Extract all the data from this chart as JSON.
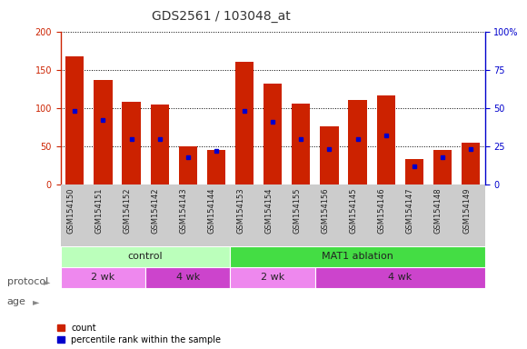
{
  "title": "GDS2561 / 103048_at",
  "samples": [
    "GSM154150",
    "GSM154151",
    "GSM154152",
    "GSM154142",
    "GSM154143",
    "GSM154144",
    "GSM154153",
    "GSM154154",
    "GSM154155",
    "GSM154156",
    "GSM154145",
    "GSM154146",
    "GSM154147",
    "GSM154148",
    "GSM154149"
  ],
  "counts": [
    168,
    137,
    108,
    105,
    50,
    45,
    160,
    132,
    106,
    76,
    110,
    117,
    33,
    45,
    55
  ],
  "percentiles": [
    48,
    42,
    30,
    30,
    18,
    22,
    48,
    41,
    30,
    23,
    30,
    32,
    12,
    18,
    23
  ],
  "bar_color_red": "#cc2200",
  "bar_color_blue": "#0000cc",
  "ylim_left": [
    0,
    200
  ],
  "ylim_right": [
    0,
    100
  ],
  "yticks_left": [
    0,
    50,
    100,
    150,
    200
  ],
  "yticks_right": [
    0,
    25,
    50,
    75,
    100
  ],
  "ytick_labels_right": [
    "0",
    "25",
    "50",
    "75",
    "100%"
  ],
  "protocol_groups": [
    {
      "label": "control",
      "start": 0,
      "end": 6,
      "color": "#bbffbb"
    },
    {
      "label": "MAT1 ablation",
      "start": 6,
      "end": 15,
      "color": "#44dd44"
    }
  ],
  "age_groups": [
    {
      "label": "2 wk",
      "start": 0,
      "end": 3,
      "color": "#ee88ee"
    },
    {
      "label": "4 wk",
      "start": 3,
      "end": 6,
      "color": "#cc44cc"
    },
    {
      "label": "2 wk",
      "start": 6,
      "end": 9,
      "color": "#ee88ee"
    },
    {
      "label": "4 wk",
      "start": 9,
      "end": 15,
      "color": "#cc44cc"
    }
  ],
  "protocol_label": "protocol",
  "age_label": "age",
  "legend_count_label": "count",
  "legend_pct_label": "percentile rank within the sample",
  "background_color": "#ffffff",
  "plot_bg_color": "#ffffff",
  "xtick_bg_color": "#cccccc",
  "grid_color": "#000000",
  "bar_width": 0.65,
  "title_fontsize": 10,
  "label_fontsize": 8,
  "tick_fontsize": 7,
  "sample_fontsize": 6
}
